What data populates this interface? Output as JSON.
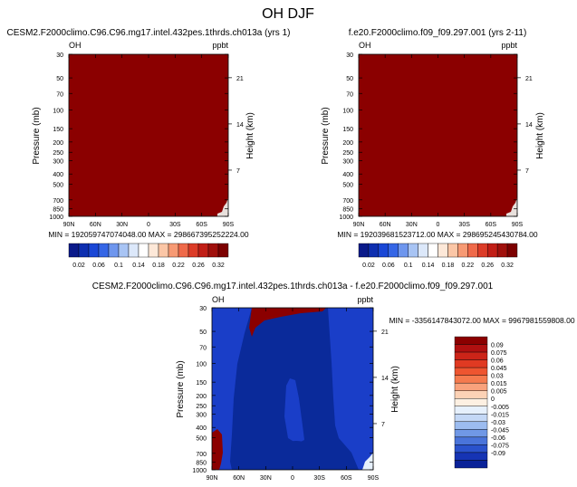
{
  "figure_title": "OH DJF",
  "colors": {
    "sat": "#8b0000",
    "deep_blue": "#0a2a9a",
    "bright_blue": "#1a3ec8",
    "sat_edge": "#e8e0dc"
  },
  "chart_data": [
    {
      "type": "heatmap",
      "title": "CESM2.F2000climo.C96.C96.mg17.intel.432pes.1thrds.ch013a (yrs 1)",
      "corner_left": "OH",
      "corner_right": "ppbt",
      "ylabel": "Pressure (mb)",
      "y2label": "Height (km)",
      "x_ticks": [
        "90N",
        "60N",
        "30N",
        "0",
        "30S",
        "60S",
        "90S"
      ],
      "y_ticks": [
        "30",
        "50",
        "70",
        "100",
        "150",
        "200",
        "250",
        "300",
        "400",
        "500",
        "700",
        "850",
        "1000"
      ],
      "y2_ticks": [
        "21",
        "14",
        "7"
      ],
      "stats": "MIN = 192059747074048.00    MAX = 298667395252224.00",
      "colorbar": {
        "labels": [
          "0.02",
          "0.06",
          "0.1",
          "0.14",
          "0.18",
          "0.22",
          "0.26",
          "0.32"
        ],
        "colors": [
          "#0a1a8a",
          "#0e2fb0",
          "#1a47d6",
          "#3566e6",
          "#6e96ee",
          "#a8c4f4",
          "#dce8fa",
          "#ffffff",
          "#fde8d8",
          "#fbc6a6",
          "#f79a74",
          "#ef6a4a",
          "#dc3c28",
          "#c11e16",
          "#a0100c",
          "#7c0000"
        ]
      }
    },
    {
      "type": "heatmap",
      "title": "f.e20.F2000climo.f09_f09.297.001 (yrs 2-11)",
      "corner_left": "OH",
      "corner_right": "ppbt",
      "ylabel": "Pressure (mb)",
      "y2label": "Height (km)",
      "x_ticks": [
        "90N",
        "60N",
        "30N",
        "0",
        "30S",
        "60S",
        "90S"
      ],
      "y_ticks": [
        "30",
        "50",
        "70",
        "100",
        "150",
        "200",
        "250",
        "300",
        "400",
        "500",
        "700",
        "850",
        "1000"
      ],
      "y2_ticks": [
        "21",
        "14",
        "7"
      ],
      "stats": "MIN = 192039681523712.00    MAX = 298695245430784.00",
      "colorbar": {
        "labels": [
          "0.02",
          "0.06",
          "0.1",
          "0.14",
          "0.18",
          "0.22",
          "0.26",
          "0.32"
        ],
        "colors": [
          "#0a1a8a",
          "#0e2fb0",
          "#1a47d6",
          "#3566e6",
          "#6e96ee",
          "#a8c4f4",
          "#dce8fa",
          "#ffffff",
          "#fde8d8",
          "#fbc6a6",
          "#f79a74",
          "#ef6a4a",
          "#dc3c28",
          "#c11e16",
          "#a0100c",
          "#7c0000"
        ]
      }
    },
    {
      "type": "heatmap",
      "title": "CESM2.F2000climo.C96.C96.mg17.intel.432pes.1thrds.ch013a - f.e20.F2000climo.f09_f09.297.001",
      "corner_left": "OH",
      "corner_right": "ppbt",
      "ylabel": "Pressure (mb)",
      "y2label": "Height (km)",
      "x_ticks": [
        "90N",
        "60N",
        "30N",
        "0",
        "30S",
        "60S",
        "90S"
      ],
      "y_ticks": [
        "30",
        "50",
        "70",
        "100",
        "150",
        "200",
        "250",
        "300",
        "400",
        "500",
        "700",
        "850",
        "1000"
      ],
      "y2_ticks": [
        "21",
        "14",
        "7"
      ],
      "stats": "MIN = -3356147843072.00    MAX = 9967981559808.00",
      "colorbar": {
        "labels": [
          "0.09",
          "0.075",
          "0.06",
          "0.045",
          "0.03",
          "0.015",
          "0.005",
          "0",
          "-0.005",
          "-0.015",
          "-0.03",
          "-0.045",
          "-0.06",
          "-0.075",
          "-0.09"
        ],
        "colors": [
          "#8b0000",
          "#b01010",
          "#cc2418",
          "#e03a22",
          "#ee5530",
          "#f57a4e",
          "#f9a27c",
          "#fcd2b6",
          "#fdf0e2",
          "#e6f0fc",
          "#c4d8f6",
          "#9cbcf0",
          "#7098e6",
          "#4a74da",
          "#2a52cc",
          "#1634b4",
          "#0a2298"
        ]
      }
    }
  ]
}
